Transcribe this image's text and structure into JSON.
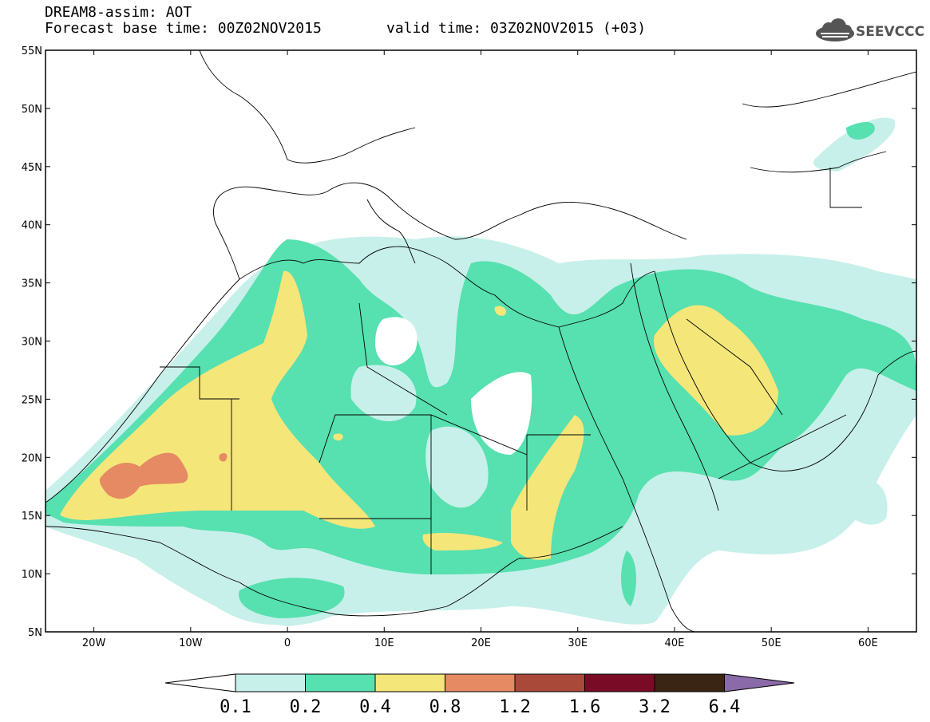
{
  "header": {
    "title_line1": "DREAM8-assim: AOT",
    "title_line2": "Forecast base time: 00Z02NOV2015",
    "valid_time": "valid time: 03Z02NOV2015 (+03)",
    "logo_text": "SEEVCCC"
  },
  "map": {
    "lat_labels": [
      "55N",
      "50N",
      "45N",
      "40N",
      "35N",
      "30N",
      "25N",
      "20N",
      "15N",
      "10N",
      "5N"
    ],
    "lon_labels": [
      "20W",
      "10W",
      "0",
      "10E",
      "20E",
      "30E",
      "40E",
      "50E",
      "60E"
    ],
    "lat_range": [
      5,
      55
    ],
    "lon_range": [
      -25,
      65
    ]
  },
  "colorbar": {
    "labels": [
      "0.1",
      "0.2",
      "0.4",
      "0.8",
      "1.2",
      "1.6",
      "3.2",
      "6.4"
    ],
    "colors": [
      "#ffffff",
      "#c8f0ea",
      "#57e0b0",
      "#f5e67a",
      "#e58a62",
      "#a8493a",
      "#7a0b26",
      "#3a2414",
      "#8a6aa8"
    ]
  }
}
